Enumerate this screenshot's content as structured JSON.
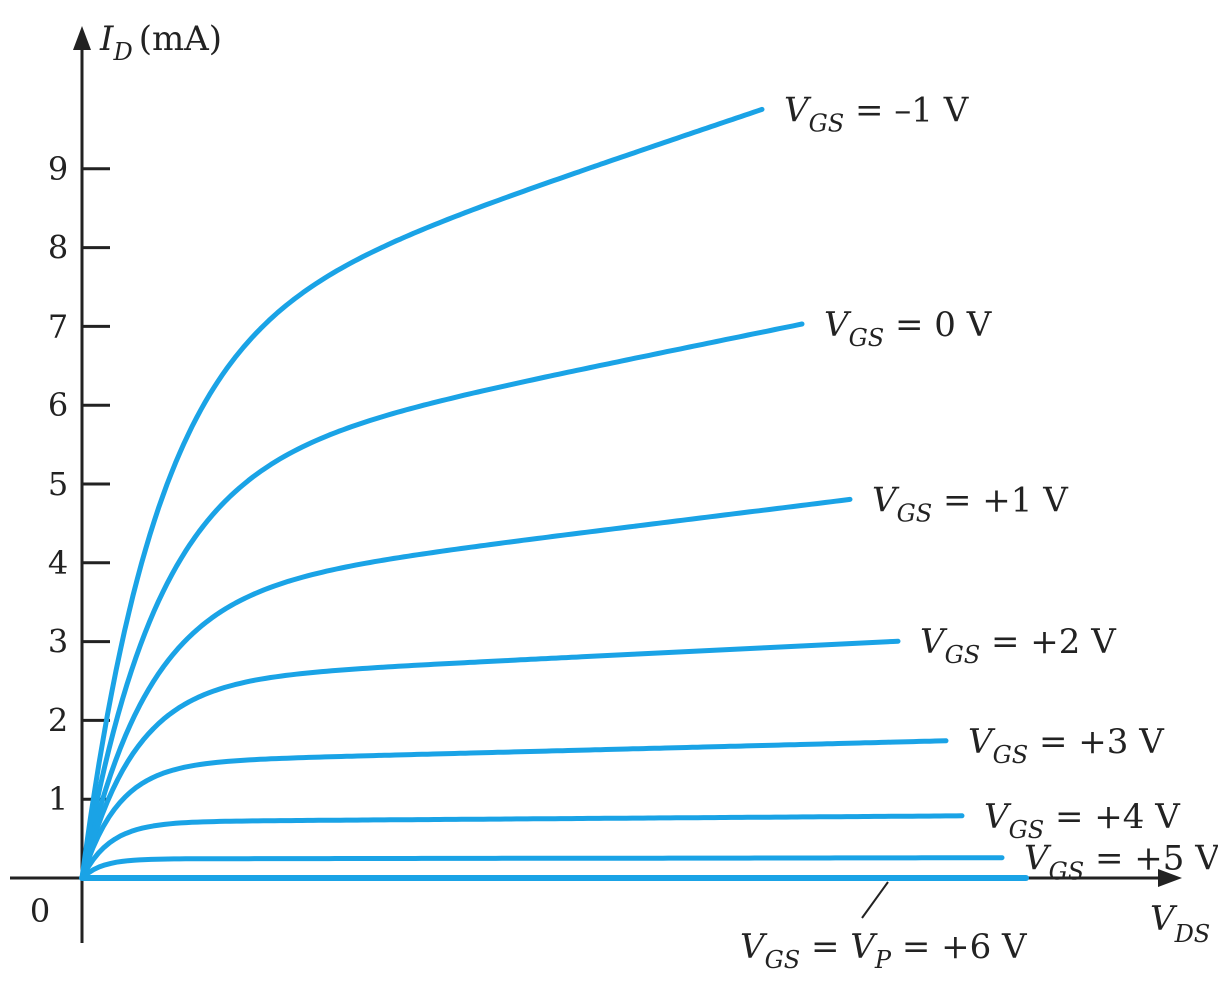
{
  "chart_data": {
    "type": "line",
    "xlabel": {
      "main": "V",
      "sub": "DS"
    },
    "ylabel": {
      "main": "I",
      "sub": "D",
      "unit": "(mA)"
    },
    "yticks": [
      "0",
      "1",
      "2",
      "3",
      "4",
      "5",
      "6",
      "7",
      "8",
      "9"
    ],
    "ylim": [
      0,
      10
    ],
    "xlim": [
      0,
      14
    ],
    "grid": false,
    "legend": "inline-right",
    "colors": {
      "curve": "#1aa3e6",
      "axis": "#222222",
      "text": "#222222"
    },
    "series": [
      {
        "label": {
          "pre": "V",
          "sub": "GS",
          "post": " = –1 V"
        },
        "saturation": 8.3,
        "knee": 0.9,
        "slope": 0.05,
        "x_end": 8.5
      },
      {
        "label": {
          "pre": "V",
          "sub": "GS",
          "post": " = 0 V"
        },
        "saturation": 6.1,
        "knee": 0.9,
        "slope": 0.04,
        "x_end": 9.0
      },
      {
        "label": {
          "pre": "V",
          "sub": "GS",
          "post": " = +1 V"
        },
        "saturation": 4.2,
        "knee": 0.8,
        "slope": 0.035,
        "x_end": 9.6
      },
      {
        "label": {
          "pre": "V",
          "sub": "GS",
          "post": " = +2 V"
        },
        "saturation": 2.75,
        "knee": 0.65,
        "slope": 0.02,
        "x_end": 10.2
      },
      {
        "label": {
          "pre": "V",
          "sub": "GS",
          "post": " = +3 V"
        },
        "saturation": 1.6,
        "knee": 0.45,
        "slope": 0.018,
        "x_end": 10.8
      },
      {
        "label": {
          "pre": "V",
          "sub": "GS",
          "post": " = +4 V"
        },
        "saturation": 0.75,
        "knee": 0.35,
        "slope": 0.01,
        "x_end": 11.0
      },
      {
        "label": {
          "pre": "V",
          "sub": "GS",
          "post": " = +5 V"
        },
        "saturation": 0.25,
        "knee": 0.25,
        "slope": 0.005,
        "x_end": 11.5
      },
      {
        "label": {
          "pre": "V",
          "sub": "GS",
          "post": " = ",
          "pre2": "V",
          "sub2": "P",
          "post2": " = +6 V"
        },
        "saturation": 0.0,
        "knee": 0.2,
        "slope": 0.0,
        "x_end": 11.8
      }
    ]
  }
}
